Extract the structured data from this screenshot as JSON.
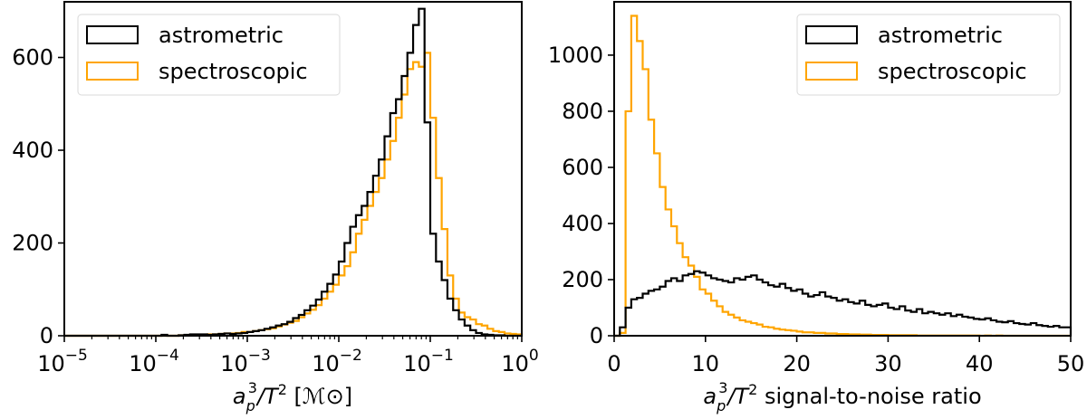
{
  "chart_data": [
    {
      "type": "histogram-step",
      "title": "",
      "xlabel": "a_p^3/T^2 [M_sun]",
      "xlabel_parts": {
        "base": "a",
        "sub": "p",
        "sup": "3",
        "rest": "/T",
        "sup2": "2",
        "unit": " [ℳ⊙]"
      },
      "ylabel": "",
      "xscale": "log",
      "xlim": [
        1e-05,
        1.0
      ],
      "ylim": [
        0,
        720
      ],
      "xticks": [
        {
          "value": -5,
          "label_base": "10",
          "label_exp": "−5"
        },
        {
          "value": -4,
          "label_base": "10",
          "label_exp": "−4"
        },
        {
          "value": -3,
          "label_base": "10",
          "label_exp": "−3"
        },
        {
          "value": -2,
          "label_base": "10",
          "label_exp": "−2"
        },
        {
          "value": -1,
          "label_base": "10",
          "label_exp": "−1"
        },
        {
          "value": 0,
          "label_base": "10",
          "label_exp": "0"
        }
      ],
      "yticks": [
        0,
        200,
        400,
        600
      ],
      "legend_position": "upper left",
      "bin_log_start": -5.0,
      "bin_log_width": 0.0625,
      "series": [
        {
          "name": "astrometric",
          "color": "#000000",
          "values": [
            0,
            0,
            0,
            0,
            0,
            0,
            0,
            0,
            0,
            0,
            0,
            0,
            0,
            0,
            0,
            0,
            0,
            2,
            0,
            0,
            1,
            2,
            3,
            3,
            3,
            2,
            3,
            4,
            5,
            4,
            5,
            6,
            8,
            10,
            12,
            15,
            18,
            22,
            25,
            30,
            38,
            45,
            55,
            65,
            78,
            95,
            112,
            132,
            160,
            200,
            235,
            260,
            280,
            310,
            345,
            380,
            430,
            480,
            510,
            560,
            610,
            670,
            705,
            460,
            220,
            160,
            120,
            80,
            55,
            35,
            22,
            12,
            6,
            3,
            2,
            1,
            1,
            0,
            0,
            0
          ],
          "note": "counts estimated from pixel heights"
        },
        {
          "name": "spectroscopic",
          "color": "#FFA500",
          "values": [
            0,
            0,
            0,
            0,
            0,
            0,
            0,
            0,
            0,
            0,
            0,
            0,
            0,
            0,
            0,
            0,
            0,
            0,
            0,
            0,
            1,
            1,
            2,
            2,
            2,
            3,
            3,
            4,
            5,
            5,
            6,
            8,
            8,
            10,
            12,
            14,
            16,
            20,
            24,
            28,
            32,
            40,
            48,
            56,
            66,
            80,
            95,
            110,
            130,
            150,
            180,
            220,
            250,
            280,
            310,
            340,
            380,
            420,
            470,
            520,
            575,
            590,
            580,
            610,
            470,
            340,
            230,
            130,
            80,
            50,
            40,
            35,
            25,
            22,
            15,
            10,
            8,
            5,
            4,
            3
          ],
          "note": "counts estimated from pixel heights"
        }
      ]
    },
    {
      "type": "histogram-step",
      "title": "",
      "xlabel": "a_p^3/T^2 signal-to-noise ratio",
      "xlabel_parts": {
        "base": "a",
        "sub": "p",
        "sup": "3",
        "rest": "/T",
        "sup2": "2",
        "unit": " signal-to-noise ratio"
      },
      "ylabel": "",
      "xscale": "linear",
      "xlim": [
        0,
        50
      ],
      "ylim": [
        0,
        1190
      ],
      "xticks": [
        0,
        10,
        20,
        30,
        40,
        50
      ],
      "yticks": [
        0,
        200,
        400,
        600,
        800,
        1000
      ],
      "legend_position": "upper right",
      "bin_start": 0,
      "bin_width": 0.625,
      "series": [
        {
          "name": "astrometric",
          "color": "#000000",
          "values": [
            0,
            30,
            100,
            130,
            135,
            150,
            160,
            165,
            175,
            195,
            205,
            195,
            215,
            220,
            230,
            225,
            215,
            205,
            200,
            195,
            190,
            205,
            200,
            210,
            215,
            200,
            190,
            180,
            175,
            185,
            170,
            160,
            165,
            150,
            140,
            145,
            155,
            140,
            135,
            125,
            130,
            120,
            115,
            125,
            110,
            105,
            110,
            115,
            100,
            95,
            105,
            90,
            85,
            95,
            80,
            85,
            80,
            75,
            80,
            70,
            75,
            68,
            65,
            60,
            58,
            62,
            55,
            50,
            48,
            52,
            45,
            42,
            40,
            45,
            38,
            35,
            32,
            35,
            30,
            30
          ],
          "note": "counts estimated from pixel heights"
        },
        {
          "name": "spectroscopic",
          "color": "#FFA500",
          "values": [
            0,
            10,
            800,
            1140,
            1050,
            950,
            770,
            650,
            530,
            450,
            390,
            330,
            280,
            250,
            210,
            165,
            150,
            125,
            105,
            85,
            75,
            65,
            55,
            50,
            45,
            40,
            32,
            30,
            25,
            22,
            20,
            18,
            15,
            12,
            12,
            10,
            10,
            8,
            8,
            6,
            6,
            5,
            5,
            4,
            4,
            3,
            3,
            3,
            2,
            2,
            2,
            2,
            2,
            1,
            1,
            1,
            1,
            1,
            1,
            1,
            1,
            1,
            1,
            1,
            0,
            1,
            0,
            1,
            0,
            0,
            0,
            0,
            0,
            0,
            0,
            0,
            0,
            0,
            0,
            0
          ],
          "note": "counts estimated from pixel heights"
        }
      ]
    }
  ],
  "legend": {
    "left": [
      {
        "label": "astrometric",
        "color": "#000000"
      },
      {
        "label": "spectroscopic",
        "color": "#FFA500"
      }
    ],
    "right": [
      {
        "label": "astrometric",
        "color": "#000000"
      },
      {
        "label": "spectroscopic",
        "color": "#FFA500"
      }
    ]
  }
}
